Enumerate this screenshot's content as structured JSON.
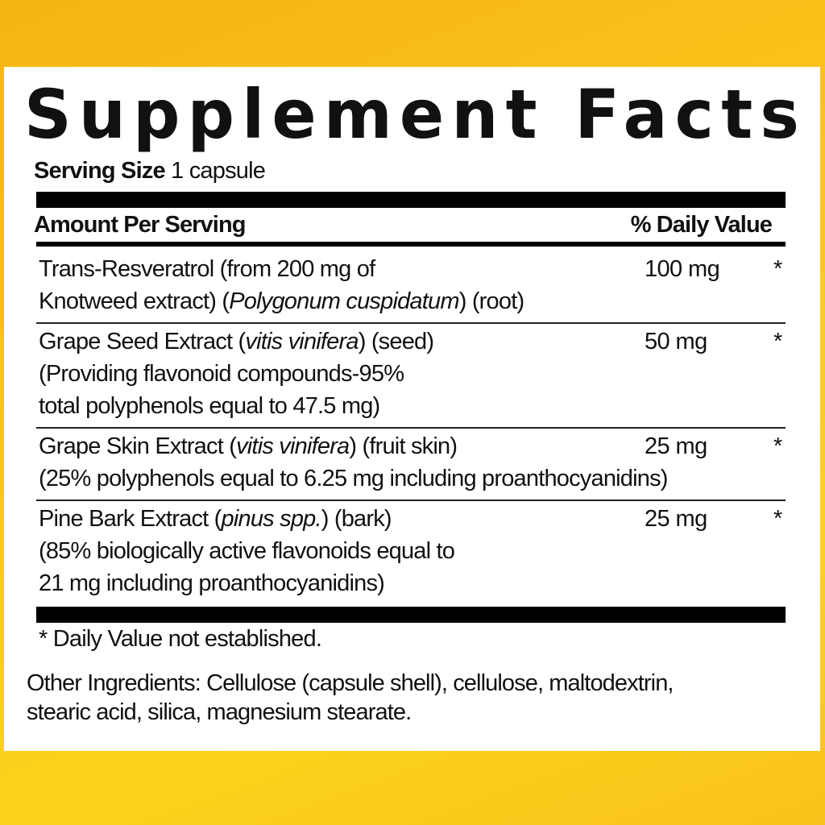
{
  "colors": {
    "background": "#fbc51a",
    "panel": "#ffffff",
    "text": "#111111"
  },
  "title": "Supplement Facts",
  "serving": {
    "label": "Serving Size",
    "value": "1 capsule"
  },
  "header": {
    "amount": "Amount Per Serving",
    "daily_value": "% Daily Value"
  },
  "ingredients": [
    {
      "lines": [
        [
          {
            "t": "Trans-Resveratrol (from 200 mg of",
            "i": false
          }
        ],
        [
          {
            "t": "Knotweed extract) (",
            "i": false
          },
          {
            "t": "Polygonum cuspidatum",
            "i": true
          },
          {
            "t": ") (root)",
            "i": false
          }
        ]
      ],
      "amount": "100 mg",
      "dv": "*"
    },
    {
      "lines": [
        [
          {
            "t": "Grape Seed Extract (",
            "i": false
          },
          {
            "t": "vitis vinifera",
            "i": true
          },
          {
            "t": ") (seed)",
            "i": false
          }
        ],
        [
          {
            "t": "(Providing flavonoid compounds-95%",
            "i": false
          }
        ],
        [
          {
            "t": "total polyphenols equal to 47.5 mg)",
            "i": false
          }
        ]
      ],
      "amount": "50 mg",
      "dv": "*"
    },
    {
      "lines": [
        [
          {
            "t": "Grape Skin Extract (",
            "i": false
          },
          {
            "t": "vitis vinifera",
            "i": true
          },
          {
            "t": ") (fruit skin)",
            "i": false
          }
        ],
        [
          {
            "t": "(25% polyphenols equal to 6.25 mg including proanthocyanidins)",
            "i": false
          }
        ]
      ],
      "amount": "25 mg",
      "dv": "*"
    },
    {
      "lines": [
        [
          {
            "t": "Pine Bark Extract (",
            "i": false
          },
          {
            "t": "pinus spp.",
            "i": true
          },
          {
            "t": ") (bark)",
            "i": false
          }
        ],
        [
          {
            "t": "(85% biologically active flavonoids equal to",
            "i": false
          }
        ],
        [
          {
            "t": "21 mg including proanthocyanidins)",
            "i": false
          }
        ]
      ],
      "amount": "25 mg",
      "dv": "*"
    }
  ],
  "footnote": "* Daily Value not established.",
  "other_ingredients": {
    "line1": "Other Ingredients: Cellulose (capsule shell), cellulose, maltodextrin,",
    "line2": "stearic acid, silica, magnesium stearate."
  }
}
